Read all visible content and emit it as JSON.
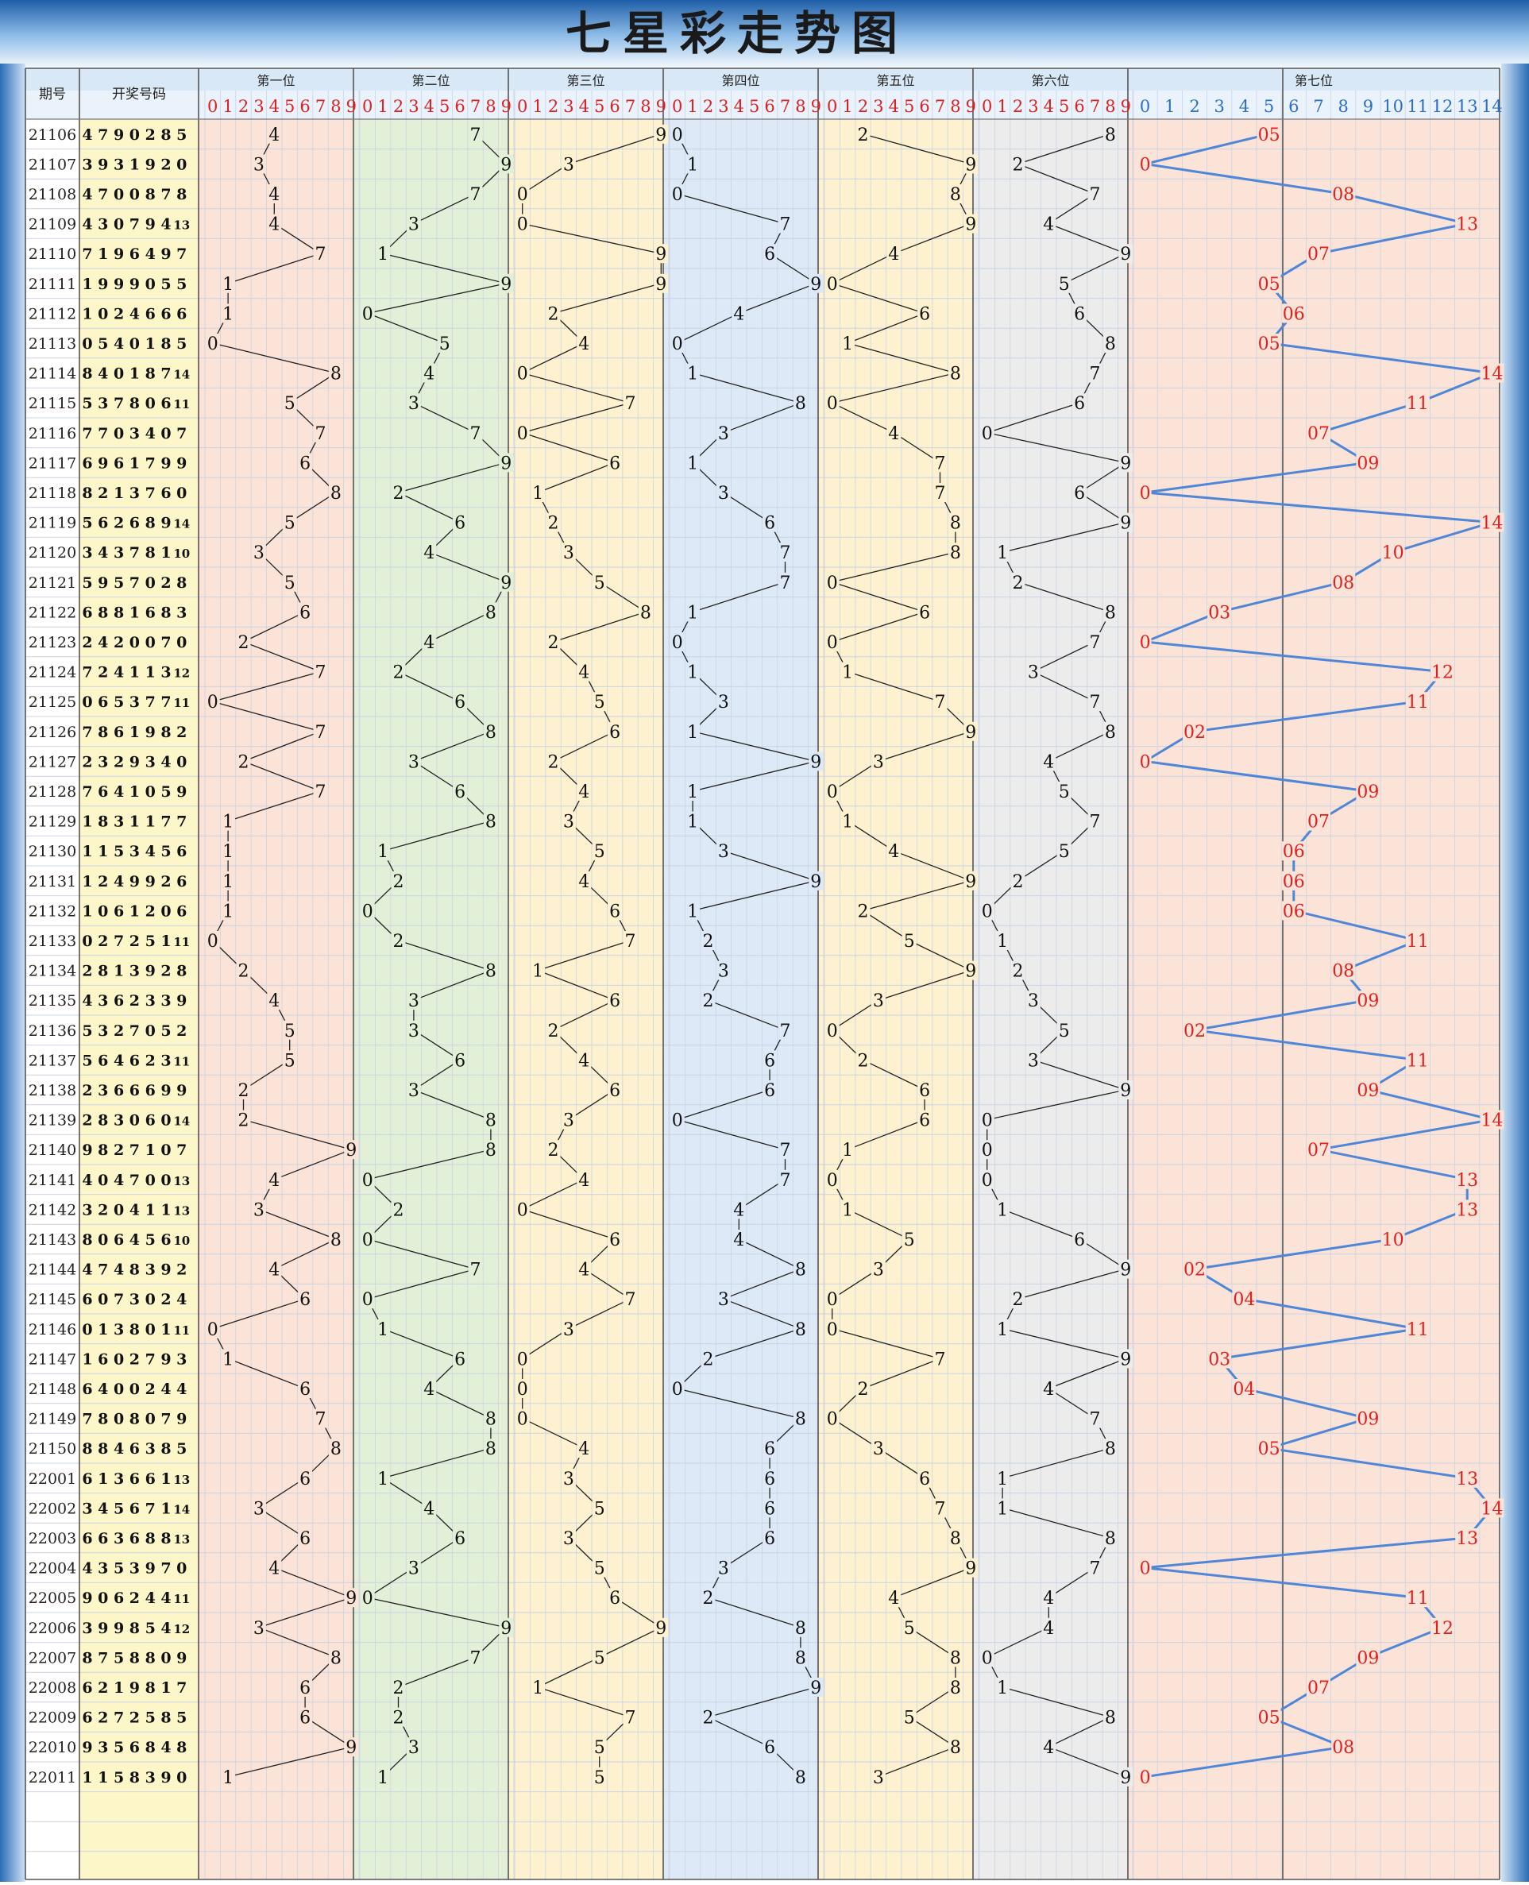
{
  "title": "七星彩走势图",
  "headers": {
    "period": "期号",
    "draw_numbers": "开奖号码",
    "positions": [
      "第一位",
      "第二位",
      "第三位",
      "第四位",
      "第五位",
      "第六位",
      "第七位"
    ]
  },
  "digit_ticks": [
    "0",
    "1",
    "2",
    "3",
    "4",
    "5",
    "6",
    "7",
    "8",
    "9"
  ],
  "pos7_ticks": [
    "0",
    "1",
    "2",
    "3",
    "4",
    "5",
    "6",
    "7",
    "8",
    "9",
    "10",
    "11",
    "12",
    "13",
    "14"
  ],
  "colors": {
    "title_band": "#3e7fc4",
    "col_bg": [
      "#fbe3d8",
      "#e3f0d8",
      "#fdf1cf",
      "#dde9f6",
      "#fdf1cf",
      "#ececec",
      "#fbe3d8"
    ],
    "number_col_bg": "#fdf6c9",
    "tick_red": "#e02020",
    "tick_blue": "#2a6fc9",
    "pos7_text": "#e02020",
    "pos7_line": "#4f86d6",
    "line": "#222222"
  },
  "chart_data": {
    "type": "table",
    "xlabel": "",
    "ylabel": "",
    "columns": [
      "第一位",
      "第二位",
      "第三位",
      "第四位",
      "第五位",
      "第六位",
      "第七位"
    ],
    "digit_range": [
      0,
      9
    ],
    "pos7_range": [
      0,
      14
    ],
    "pos7_labels": {
      "0": "0",
      "1": "01",
      "2": "02",
      "3": "03",
      "4": "04",
      "5": "05",
      "6": "06",
      "7": "07",
      "8": "08",
      "9": "09",
      "10": "10",
      "11": "11",
      "12": "12",
      "13": "13",
      "14": "14"
    },
    "rows": [
      {
        "period": "21106",
        "nums": [
          4,
          7,
          9,
          0,
          2,
          8,
          5
        ]
      },
      {
        "period": "21107",
        "nums": [
          3,
          9,
          3,
          1,
          9,
          2,
          0
        ]
      },
      {
        "period": "21108",
        "nums": [
          4,
          7,
          0,
          0,
          8,
          7,
          8
        ]
      },
      {
        "period": "21109",
        "nums": [
          4,
          3,
          0,
          7,
          9,
          4,
          13
        ]
      },
      {
        "period": "21110",
        "nums": [
          7,
          1,
          9,
          6,
          4,
          9,
          7
        ]
      },
      {
        "period": "21111",
        "nums": [
          1,
          9,
          9,
          9,
          0,
          5,
          5
        ]
      },
      {
        "period": "21112",
        "nums": [
          1,
          0,
          2,
          4,
          6,
          6,
          6
        ]
      },
      {
        "period": "21113",
        "nums": [
          0,
          5,
          4,
          0,
          1,
          8,
          5
        ]
      },
      {
        "period": "21114",
        "nums": [
          8,
          4,
          0,
          1,
          8,
          7,
          14
        ]
      },
      {
        "period": "21115",
        "nums": [
          5,
          3,
          7,
          8,
          0,
          6,
          11
        ]
      },
      {
        "period": "21116",
        "nums": [
          7,
          7,
          0,
          3,
          4,
          0,
          7
        ]
      },
      {
        "period": "21117",
        "nums": [
          6,
          9,
          6,
          1,
          7,
          9,
          9
        ]
      },
      {
        "period": "21118",
        "nums": [
          8,
          2,
          1,
          3,
          7,
          6,
          0
        ]
      },
      {
        "period": "21119",
        "nums": [
          5,
          6,
          2,
          6,
          8,
          9,
          14
        ]
      },
      {
        "period": "21120",
        "nums": [
          3,
          4,
          3,
          7,
          8,
          1,
          10
        ]
      },
      {
        "period": "21121",
        "nums": [
          5,
          9,
          5,
          7,
          0,
          2,
          8
        ]
      },
      {
        "period": "21122",
        "nums": [
          6,
          8,
          8,
          1,
          6,
          8,
          3
        ]
      },
      {
        "period": "21123",
        "nums": [
          2,
          4,
          2,
          0,
          0,
          7,
          0
        ]
      },
      {
        "period": "21124",
        "nums": [
          7,
          2,
          4,
          1,
          1,
          3,
          12
        ]
      },
      {
        "period": "21125",
        "nums": [
          0,
          6,
          5,
          3,
          7,
          7,
          11
        ]
      },
      {
        "period": "21126",
        "nums": [
          7,
          8,
          6,
          1,
          9,
          8,
          2
        ]
      },
      {
        "period": "21127",
        "nums": [
          2,
          3,
          2,
          9,
          3,
          4,
          0
        ]
      },
      {
        "period": "21128",
        "nums": [
          7,
          6,
          4,
          1,
          0,
          5,
          9
        ]
      },
      {
        "period": "21129",
        "nums": [
          1,
          8,
          3,
          1,
          1,
          7,
          7
        ]
      },
      {
        "period": "21130",
        "nums": [
          1,
          1,
          5,
          3,
          4,
          5,
          6
        ]
      },
      {
        "period": "21131",
        "nums": [
          1,
          2,
          4,
          9,
          9,
          2,
          6
        ]
      },
      {
        "period": "21132",
        "nums": [
          1,
          0,
          6,
          1,
          2,
          0,
          6
        ]
      },
      {
        "period": "21133",
        "nums": [
          0,
          2,
          7,
          2,
          5,
          1,
          11
        ]
      },
      {
        "period": "21134",
        "nums": [
          2,
          8,
          1,
          3,
          9,
          2,
          8
        ]
      },
      {
        "period": "21135",
        "nums": [
          4,
          3,
          6,
          2,
          3,
          3,
          9
        ]
      },
      {
        "period": "21136",
        "nums": [
          5,
          3,
          2,
          7,
          0,
          5,
          2
        ]
      },
      {
        "period": "21137",
        "nums": [
          5,
          6,
          4,
          6,
          2,
          3,
          11
        ]
      },
      {
        "period": "21138",
        "nums": [
          2,
          3,
          6,
          6,
          6,
          9,
          9
        ]
      },
      {
        "period": "21139",
        "nums": [
          2,
          8,
          3,
          0,
          6,
          0,
          14
        ]
      },
      {
        "period": "21140",
        "nums": [
          9,
          8,
          2,
          7,
          1,
          0,
          7
        ]
      },
      {
        "period": "21141",
        "nums": [
          4,
          0,
          4,
          7,
          0,
          0,
          13
        ]
      },
      {
        "period": "21142",
        "nums": [
          3,
          2,
          0,
          4,
          1,
          1,
          13
        ]
      },
      {
        "period": "21143",
        "nums": [
          8,
          0,
          6,
          4,
          5,
          6,
          10
        ]
      },
      {
        "period": "21144",
        "nums": [
          4,
          7,
          4,
          8,
          3,
          9,
          2
        ]
      },
      {
        "period": "21145",
        "nums": [
          6,
          0,
          7,
          3,
          0,
          2,
          4
        ]
      },
      {
        "period": "21146",
        "nums": [
          0,
          1,
          3,
          8,
          0,
          1,
          11
        ]
      },
      {
        "period": "21147",
        "nums": [
          1,
          6,
          0,
          2,
          7,
          9,
          3
        ]
      },
      {
        "period": "21148",
        "nums": [
          6,
          4,
          0,
          0,
          2,
          4,
          4
        ]
      },
      {
        "period": "21149",
        "nums": [
          7,
          8,
          0,
          8,
          0,
          7,
          9
        ]
      },
      {
        "period": "21150",
        "nums": [
          8,
          8,
          4,
          6,
          3,
          8,
          5
        ]
      },
      {
        "period": "22001",
        "nums": [
          6,
          1,
          3,
          6,
          6,
          1,
          13
        ]
      },
      {
        "period": "22002",
        "nums": [
          3,
          4,
          5,
          6,
          7,
          1,
          14
        ]
      },
      {
        "period": "22003",
        "nums": [
          6,
          6,
          3,
          6,
          8,
          8,
          13
        ]
      },
      {
        "period": "22004",
        "nums": [
          4,
          3,
          5,
          3,
          9,
          7,
          0
        ]
      },
      {
        "period": "22005",
        "nums": [
          9,
          0,
          6,
          2,
          4,
          4,
          11
        ]
      },
      {
        "period": "22006",
        "nums": [
          3,
          9,
          9,
          8,
          5,
          4,
          12
        ]
      },
      {
        "period": "22007",
        "nums": [
          8,
          7,
          5,
          8,
          8,
          0,
          9
        ]
      },
      {
        "period": "22008",
        "nums": [
          6,
          2,
          1,
          9,
          8,
          1,
          7
        ]
      },
      {
        "period": "22009",
        "nums": [
          6,
          2,
          7,
          2,
          5,
          8,
          5
        ]
      },
      {
        "period": "22010",
        "nums": [
          9,
          3,
          5,
          6,
          8,
          4,
          8
        ]
      },
      {
        "period": "22011",
        "nums": [
          1,
          1,
          5,
          8,
          3,
          9,
          0
        ]
      }
    ]
  }
}
